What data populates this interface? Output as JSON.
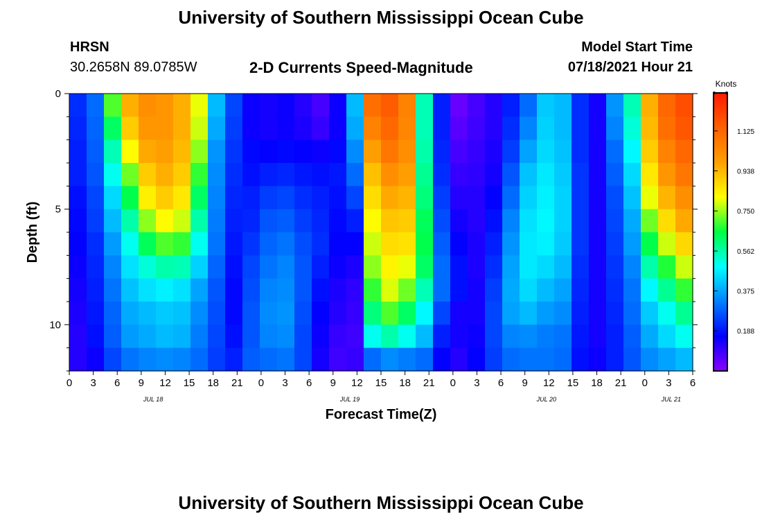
{
  "header": {
    "title_top": "University of Southern Mississippi Ocean Cube",
    "station": "HRSN",
    "coords": "30.2658N  89.0785W",
    "subtitle": "2-D Currents Speed-Magnitude",
    "model_label": "Model Start Time",
    "model_time": "07/18/2021 Hour 21",
    "title_bottom": "University of Southern Mississippi Ocean Cube"
  },
  "chart_data": {
    "type": "heatmap",
    "xlabel": "Forecast Time(Z)",
    "ylabel": "Depth (ft)",
    "x_tick_labels": [
      "0",
      "3",
      "6",
      "9",
      "12",
      "15",
      "18",
      "21",
      "0",
      "3",
      "6",
      "9",
      "12",
      "15",
      "18",
      "21",
      "0",
      "3",
      "6",
      "9",
      "12",
      "15",
      "18",
      "21",
      "0",
      "3",
      "6"
    ],
    "date_labels": [
      {
        "label": "JUL 18",
        "tick_index": 3.5
      },
      {
        "label": "JUL 19",
        "tick_index": 11.7
      },
      {
        "label": "JUL 20",
        "tick_index": 19.9
      },
      {
        "label": "JUL 21",
        "tick_index": 25.1
      }
    ],
    "y_ticks": [
      0,
      5,
      10
    ],
    "y_range": [
      0,
      12
    ],
    "colorbar": {
      "title": "Knots",
      "ticks": [
        "0.188",
        "0.375",
        "0.562",
        "0.750",
        "0.938",
        "1.125"
      ],
      "range": [
        0,
        1.3
      ],
      "colors": [
        "#8a00ff",
        "#0000ff",
        "#0080ff",
        "#00ffff",
        "#00ff40",
        "#ffff00",
        "#ffa000",
        "#ff6000",
        "#ff1a00"
      ]
    },
    "speed_grid_knots": [
      [
        0.22,
        0.21,
        0.2,
        0.2,
        0.18,
        0.17,
        0.16,
        0.15,
        0.14,
        0.13,
        0.12,
        0.12
      ],
      [
        0.3,
        0.29,
        0.28,
        0.27,
        0.25,
        0.24,
        0.22,
        0.21,
        0.2,
        0.19,
        0.18,
        0.15
      ],
      [
        0.7,
        0.62,
        0.55,
        0.5,
        0.44,
        0.4,
        0.36,
        0.33,
        0.31,
        0.29,
        0.28,
        0.25
      ],
      [
        0.95,
        0.9,
        0.82,
        0.72,
        0.64,
        0.56,
        0.5,
        0.45,
        0.41,
        0.38,
        0.36,
        0.31
      ],
      [
        1.02,
        1.0,
        0.96,
        0.9,
        0.84,
        0.74,
        0.63,
        0.52,
        0.45,
        0.4,
        0.38,
        0.33
      ],
      [
        1.0,
        1.0,
        0.98,
        0.95,
        0.9,
        0.82,
        0.7,
        0.56,
        0.47,
        0.42,
        0.4,
        0.34
      ],
      [
        0.95,
        0.95,
        0.93,
        0.9,
        0.85,
        0.78,
        0.68,
        0.55,
        0.45,
        0.41,
        0.39,
        0.33
      ],
      [
        0.8,
        0.78,
        0.74,
        0.68,
        0.62,
        0.56,
        0.5,
        0.43,
        0.37,
        0.34,
        0.32,
        0.3
      ],
      [
        0.4,
        0.38,
        0.35,
        0.34,
        0.33,
        0.32,
        0.31,
        0.29,
        0.27,
        0.26,
        0.25,
        0.24
      ],
      [
        0.25,
        0.24,
        0.23,
        0.22,
        0.21,
        0.2,
        0.19,
        0.18,
        0.17,
        0.17,
        0.18,
        0.2
      ],
      [
        0.15,
        0.15,
        0.17,
        0.18,
        0.2,
        0.21,
        0.23,
        0.25,
        0.26,
        0.27,
        0.27,
        0.28
      ],
      [
        0.14,
        0.14,
        0.16,
        0.2,
        0.24,
        0.27,
        0.29,
        0.31,
        0.33,
        0.34,
        0.33,
        0.3
      ],
      [
        0.15,
        0.15,
        0.17,
        0.21,
        0.25,
        0.28,
        0.31,
        0.33,
        0.34,
        0.35,
        0.34,
        0.31
      ],
      [
        0.12,
        0.13,
        0.16,
        0.19,
        0.22,
        0.24,
        0.26,
        0.27,
        0.27,
        0.26,
        0.25,
        0.25
      ],
      [
        0.08,
        0.1,
        0.15,
        0.18,
        0.2,
        0.21,
        0.22,
        0.2,
        0.18,
        0.16,
        0.15,
        0.14
      ],
      [
        0.15,
        0.15,
        0.17,
        0.19,
        0.18,
        0.17,
        0.16,
        0.15,
        0.13,
        0.12,
        0.1,
        0.09
      ],
      [
        0.4,
        0.38,
        0.34,
        0.3,
        0.25,
        0.2,
        0.16,
        0.13,
        0.11,
        0.1,
        0.09,
        0.1
      ],
      [
        1.1,
        1.05,
        0.98,
        0.92,
        0.87,
        0.82,
        0.78,
        0.74,
        0.68,
        0.6,
        0.5,
        0.3
      ],
      [
        1.15,
        1.12,
        1.08,
        1.02,
        0.96,
        0.91,
        0.87,
        0.83,
        0.79,
        0.7,
        0.56,
        0.34
      ],
      [
        1.05,
        1.04,
        1.02,
        0.98,
        0.94,
        0.9,
        0.86,
        0.8,
        0.72,
        0.62,
        0.5,
        0.32
      ],
      [
        0.55,
        0.55,
        0.56,
        0.58,
        0.6,
        0.63,
        0.64,
        0.62,
        0.55,
        0.48,
        0.4,
        0.3
      ],
      [
        0.2,
        0.2,
        0.21,
        0.22,
        0.24,
        0.26,
        0.28,
        0.3,
        0.3,
        0.25,
        0.2,
        0.16
      ],
      [
        0.04,
        0.06,
        0.08,
        0.1,
        0.12,
        0.14,
        0.16,
        0.18,
        0.18,
        0.14,
        0.14,
        0.12
      ],
      [
        0.08,
        0.09,
        0.1,
        0.11,
        0.12,
        0.12,
        0.13,
        0.13,
        0.14,
        0.14,
        0.15,
        0.16
      ],
      [
        0.12,
        0.12,
        0.13,
        0.14,
        0.16,
        0.18,
        0.2,
        0.22,
        0.24,
        0.25,
        0.25,
        0.24
      ],
      [
        0.2,
        0.22,
        0.24,
        0.27,
        0.3,
        0.33,
        0.35,
        0.37,
        0.38,
        0.37,
        0.33,
        0.3
      ],
      [
        0.3,
        0.33,
        0.37,
        0.41,
        0.43,
        0.45,
        0.46,
        0.46,
        0.44,
        0.4,
        0.34,
        0.31
      ],
      [
        0.42,
        0.43,
        0.44,
        0.46,
        0.47,
        0.48,
        0.47,
        0.44,
        0.4,
        0.36,
        0.32,
        0.31
      ],
      [
        0.4,
        0.4,
        0.41,
        0.42,
        0.43,
        0.43,
        0.42,
        0.4,
        0.37,
        0.34,
        0.31,
        0.3
      ],
      [
        0.22,
        0.22,
        0.22,
        0.23,
        0.23,
        0.23,
        0.23,
        0.22,
        0.21,
        0.2,
        0.19,
        0.18
      ],
      [
        0.14,
        0.14,
        0.14,
        0.14,
        0.14,
        0.14,
        0.14,
        0.14,
        0.14,
        0.14,
        0.14,
        0.15
      ],
      [
        0.35,
        0.33,
        0.3,
        0.28,
        0.26,
        0.25,
        0.24,
        0.23,
        0.22,
        0.21,
        0.2,
        0.2
      ],
      [
        0.55,
        0.52,
        0.48,
        0.44,
        0.41,
        0.38,
        0.36,
        0.33,
        0.31,
        0.3,
        0.28,
        0.27
      ],
      [
        0.95,
        0.93,
        0.9,
        0.85,
        0.8,
        0.72,
        0.64,
        0.56,
        0.48,
        0.42,
        0.38,
        0.34
      ],
      [
        1.12,
        1.1,
        1.05,
        1.0,
        0.94,
        0.87,
        0.78,
        0.67,
        0.58,
        0.5,
        0.44,
        0.37
      ],
      [
        1.18,
        1.16,
        1.12,
        1.08,
        1.02,
        0.96,
        0.88,
        0.78,
        0.68,
        0.58,
        0.5,
        0.4
      ]
    ]
  }
}
